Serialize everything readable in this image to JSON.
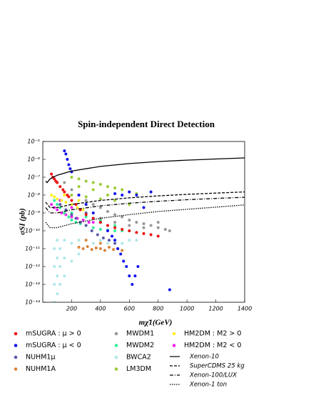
{
  "chart_data": {
    "type": "scatter",
    "title": "Spin-independent Direct Detection",
    "x_label": "mχ̃1(GeV)",
    "y_label": "σSI (pb)",
    "log_y": true,
    "xlim": [
      0,
      1400
    ],
    "xticks": [
      200,
      400,
      600,
      800,
      1000,
      1200,
      1400
    ],
    "ylim": [
      1e-14,
      1e-05
    ],
    "yticks": [
      {
        "value": 1e-05,
        "label": "10⁻⁵"
      },
      {
        "value": 1e-06,
        "label": "10⁻⁶"
      },
      {
        "value": 1e-07,
        "label": "10⁻⁷"
      },
      {
        "value": 1e-08,
        "label": "10⁻⁸"
      },
      {
        "value": 1e-09,
        "label": "10⁻⁹"
      },
      {
        "value": 1e-10,
        "label": "10⁻¹⁰"
      },
      {
        "value": 1e-11,
        "label": "10⁻¹¹"
      },
      {
        "value": 1e-12,
        "label": "10⁻¹²"
      },
      {
        "value": 1e-13,
        "label": "10⁻¹³"
      },
      {
        "value": 1e-14,
        "label": "10⁻¹⁴"
      }
    ],
    "series": [
      {
        "name": "mSUGRA : μ > 0",
        "color": "#ee1111",
        "x": [
          60,
          70,
          80,
          90,
          100,
          120,
          140,
          150,
          170,
          180,
          200,
          230,
          260,
          300,
          350,
          400,
          450,
          500,
          550,
          600,
          650,
          700,
          750,
          800
        ],
        "values": [
          1.5e-07,
          1e-07,
          8e-08,
          6e-08,
          5e-08,
          3e-08,
          2e-08,
          1.5e-08,
          1e-08,
          8e-09,
          5e-09,
          3e-09,
          1.5e-09,
          8e-10,
          5e-10,
          3e-10,
          2e-10,
          1.5e-10,
          1.2e-10,
          1e-10,
          8e-11,
          7e-11,
          6e-11,
          5e-11
        ]
      },
      {
        "name": "mSUGRA : μ < 0",
        "color": "#1111ee",
        "x": [
          150,
          160,
          170,
          180,
          190,
          200,
          250,
          300,
          350,
          400,
          450,
          480,
          500,
          520,
          540,
          560,
          580,
          600,
          620,
          640,
          660,
          500,
          550,
          600,
          650,
          700,
          750,
          880
        ],
        "values": [
          3e-06,
          2e-06,
          1e-06,
          5e-07,
          3e-07,
          2e-07,
          1e-08,
          3e-09,
          1e-09,
          3e-10,
          1e-10,
          5e-11,
          3e-11,
          1e-11,
          5e-12,
          2e-12,
          1e-12,
          3e-13,
          1e-13,
          3e-13,
          1e-12,
          1.2e-08,
          1e-08,
          1.5e-08,
          1e-08,
          2e-09,
          1.5e-08,
          5e-14
        ]
      },
      {
        "name": "NUHM1μ",
        "color": "#5a5aa8",
        "x": [
          120,
          160,
          200,
          230,
          260,
          300,
          340,
          380,
          420,
          460,
          500,
          300,
          350
        ],
        "values": [
          3e-09,
          1.5e-09,
          8e-10,
          5e-10,
          3e-10,
          2e-10,
          1e-10,
          6e-11,
          4e-11,
          3e-11,
          2e-11,
          1e-09,
          5e-10
        ]
      },
      {
        "name": "NUHM1A",
        "color": "#d8843c",
        "x": [
          250,
          280,
          310,
          340,
          370,
          400,
          430,
          460,
          490,
          520,
          550,
          300,
          400
        ],
        "values": [
          1.2e-11,
          1e-11,
          1.3e-11,
          9e-12,
          1.1e-11,
          1e-11,
          8e-12,
          1.2e-11,
          9e-12,
          1e-11,
          8e-12,
          3e-11,
          2e-11
        ]
      },
      {
        "name": "MWDM1",
        "color": "#999999",
        "x": [
          150,
          200,
          250,
          300,
          350,
          400,
          450,
          500,
          550,
          600,
          650,
          700,
          750,
          800,
          850,
          880,
          400,
          500,
          600,
          700,
          800
        ],
        "values": [
          5e-08,
          2e-08,
          1e-08,
          5e-09,
          3e-09,
          2e-09,
          1.2e-09,
          8e-10,
          6e-10,
          4e-10,
          3e-10,
          2.5e-10,
          2e-10,
          1.5e-10,
          1.2e-10,
          1e-10,
          5e-10,
          3e-10,
          2e-10,
          1.5e-10,
          3e-10
        ]
      },
      {
        "name": "MWDM2",
        "color": "#33ee99",
        "x": [
          80,
          100,
          120,
          150,
          180,
          200,
          230,
          260,
          300,
          350,
          400,
          450,
          500,
          550,
          600,
          200,
          300,
          400,
          500
        ],
        "values": [
          5e-09,
          3e-09,
          2e-09,
          1e-09,
          6e-10,
          4e-10,
          3e-10,
          2.5e-10,
          2e-10,
          1.5e-10,
          1.2e-10,
          1.1e-10,
          1e-10,
          1e-10,
          1e-10,
          1e-09,
          6e-10,
          4e-10,
          2e-10
        ]
      },
      {
        "name": "BWCA2",
        "color": "#b0e8e8",
        "x": [
          80,
          80,
          80,
          80,
          100,
          100,
          100,
          100,
          120,
          120,
          120,
          150,
          150,
          150,
          200,
          200,
          250,
          250,
          300,
          350,
          400,
          450,
          500,
          550,
          600,
          650
        ],
        "values": [
          1e-11,
          1e-12,
          1e-13,
          1e-14,
          3e-11,
          3e-12,
          3e-13,
          3e-14,
          1e-11,
          1e-12,
          1e-13,
          3e-11,
          3e-12,
          3e-13,
          2e-11,
          2e-12,
          3e-11,
          5e-12,
          3e-11,
          2e-11,
          3e-11,
          2e-11,
          3e-11,
          2e-11,
          3e-11,
          3e-11
        ]
      },
      {
        "name": "LM3DM",
        "color": "#99cc33",
        "x": [
          200,
          250,
          300,
          350,
          400,
          450,
          500,
          550,
          600,
          650,
          200,
          300,
          400,
          500,
          600,
          250,
          350,
          450
        ],
        "values": [
          1e-07,
          8e-08,
          6e-08,
          5e-08,
          4e-08,
          3e-08,
          2.5e-08,
          2e-08,
          1.5e-08,
          1.2e-08,
          1e-08,
          8e-09,
          6e-09,
          5e-09,
          3e-09,
          3e-08,
          2e-08,
          1e-08
        ]
      },
      {
        "name": "HM2DM : M2 > 0",
        "color": "#ffee22",
        "x": [
          60,
          80,
          100,
          130,
          160,
          200,
          240,
          280,
          300,
          150,
          250
        ],
        "values": [
          1e-08,
          8e-09,
          6e-09,
          5e-09,
          4e-09,
          3e-09,
          2e-09,
          1.5e-09,
          1e-09,
          1e-08,
          5e-09
        ]
      },
      {
        "name": "HM2DM : M2 < 0",
        "color": "#ee22ee",
        "x": [
          60,
          80,
          100,
          130,
          160,
          200,
          240,
          280,
          320,
          350,
          120,
          200
        ],
        "values": [
          3e-09,
          2e-09,
          1.5e-09,
          1e-09,
          8e-10,
          6e-10,
          5e-10,
          4e-10,
          3e-10,
          3e-10,
          5e-09,
          2e-09
        ]
      }
    ],
    "limits": [
      {
        "name": "Xenon-10",
        "style": "solid",
        "x": [
          20,
          30,
          50,
          100,
          200,
          400,
          600,
          800,
          1000,
          1200,
          1400
        ],
        "values": [
          6e-08,
          5e-08,
          8e-08,
          1.3e-07,
          2.2e-07,
          4e-07,
          5.8e-07,
          7.5e-07,
          9e-07,
          1.05e-06,
          1.2e-06
        ]
      },
      {
        "name": "SuperCDMS 25 kg",
        "style": "dashed",
        "x": [
          20,
          50,
          100,
          200,
          400,
          600,
          800,
          1000,
          1200,
          1400
        ],
        "values": [
          4e-09,
          2e-09,
          2e-09,
          3e-09,
          5e-09,
          7e-09,
          9e-09,
          1.1e-08,
          1.3e-08,
          1.5e-08
        ]
      },
      {
        "name": "Xenon-100/LUX",
        "style": "dashdot",
        "x": [
          20,
          50,
          100,
          200,
          400,
          600,
          800,
          1000,
          1200,
          1400
        ],
        "values": [
          2e-09,
          1e-09,
          1e-09,
          1.5e-09,
          2.5e-09,
          3.5e-09,
          4.5e-09,
          5.5e-09,
          6.5e-09,
          7.5e-09
        ]
      },
      {
        "name": "Xenon-1 ton",
        "style": "dotted",
        "x": [
          20,
          50,
          100,
          200,
          400,
          600,
          800,
          1000,
          1200,
          1400
        ],
        "values": [
          3e-10,
          1.5e-10,
          1.5e-10,
          2.5e-10,
          5e-10,
          8e-10,
          1.2e-09,
          1.6e-09,
          2.1e-09,
          2.8e-09
        ]
      }
    ]
  }
}
